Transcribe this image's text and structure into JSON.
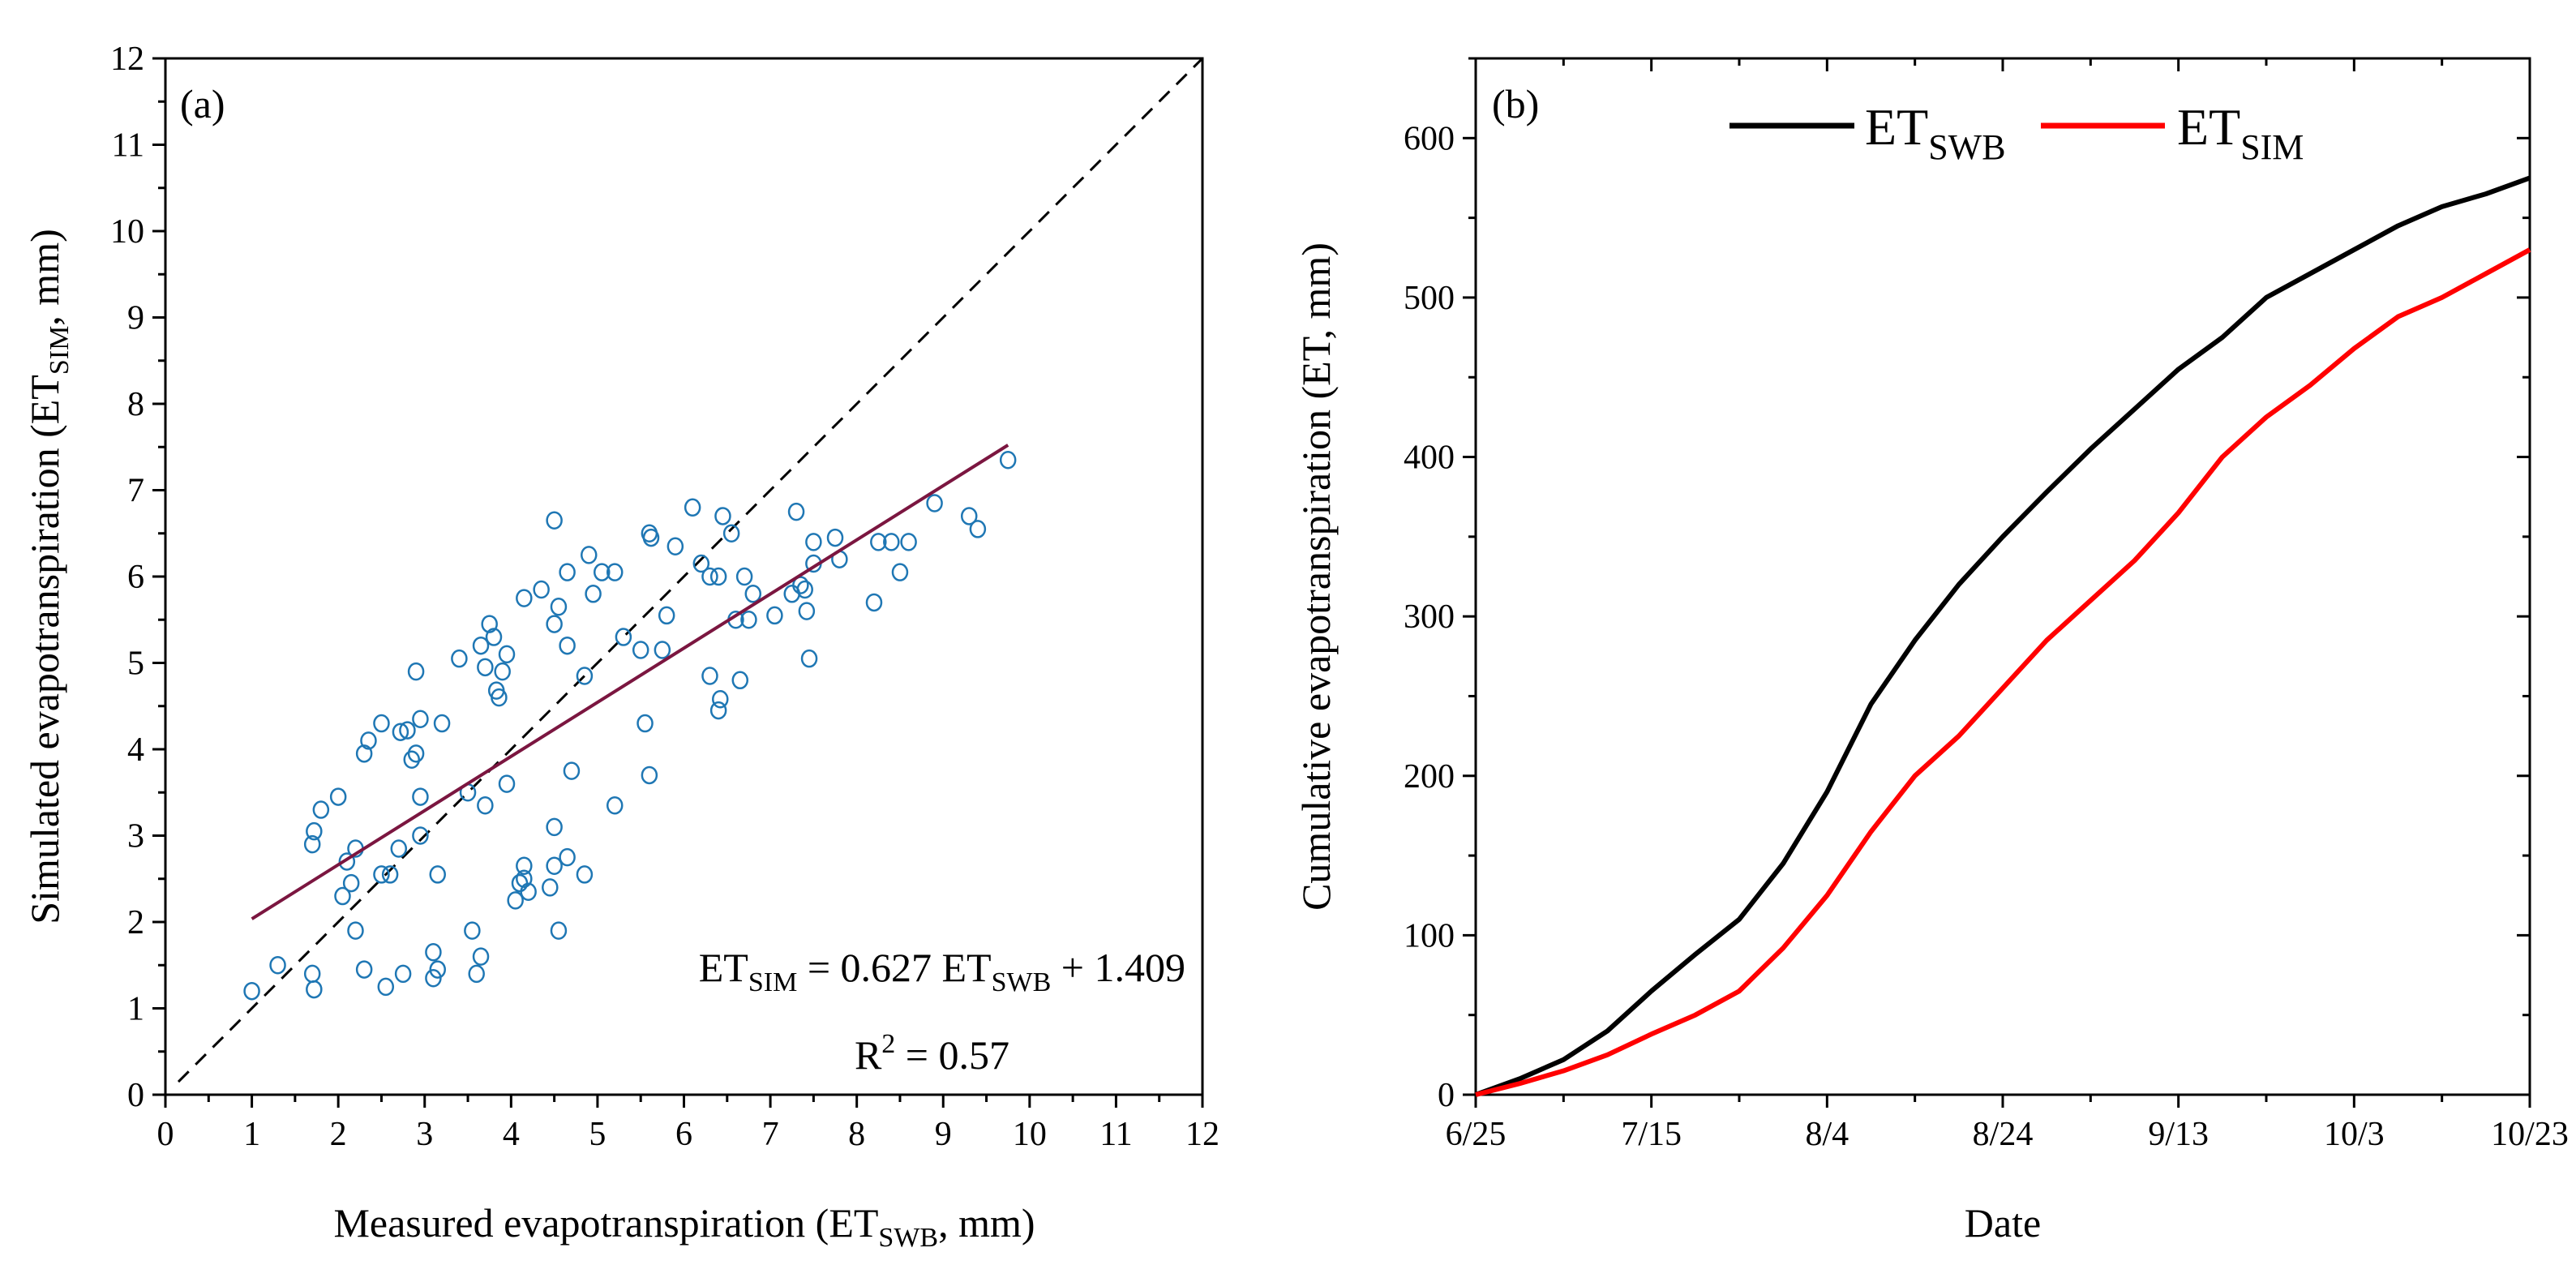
{
  "chart_data": [
    {
      "type": "scatter",
      "panel_label": "(a)",
      "xlabel": {
        "main": "Measured evapotranspiration (ET",
        "sub": "SWB",
        "tail": ", mm)"
      },
      "ylabel": {
        "main": "Simulated evapotranspiration (ET",
        "sub": "SIM",
        "tail": ", mm)"
      },
      "xlim": [
        0,
        12
      ],
      "ylim": [
        0,
        12
      ],
      "xticks": [
        "0",
        "1",
        "2",
        "3",
        "4",
        "5",
        "6",
        "7",
        "8",
        "9",
        "10",
        "11",
        "12"
      ],
      "yticks": [
        "0",
        "1",
        "2",
        "3",
        "4",
        "5",
        "6",
        "7",
        "8",
        "9",
        "10",
        "11",
        "12"
      ],
      "marker_color": "#1f77b4",
      "regression": {
        "slope": 0.627,
        "intercept": 1.409,
        "x_range": [
          1.0,
          9.75
        ],
        "color": "#7b1640"
      },
      "one_to_one_line": {
        "x_range": [
          0.15,
          12
        ],
        "style": "dashed"
      },
      "equation": {
        "lhs": "ET",
        "lhs_sub": "SIM",
        "mid": " = 0.627 ET",
        "mid_sub": "SWB",
        "rhs": " + 1.409"
      },
      "r2": {
        "pre": "R",
        "sup": "2",
        "post": " = 0.57"
      },
      "points": [
        [
          1.0,
          1.2
        ],
        [
          1.3,
          1.5
        ],
        [
          1.7,
          1.4
        ],
        [
          1.72,
          1.22
        ],
        [
          1.7,
          2.9
        ],
        [
          1.72,
          3.05
        ],
        [
          1.8,
          3.3
        ],
        [
          2.0,
          3.45
        ],
        [
          2.05,
          2.3
        ],
        [
          2.1,
          2.7
        ],
        [
          2.2,
          2.85
        ],
        [
          2.15,
          2.45
        ],
        [
          2.2,
          1.9
        ],
        [
          2.3,
          3.95
        ],
        [
          2.35,
          4.1
        ],
        [
          2.5,
          4.3
        ],
        [
          2.3,
          1.45
        ],
        [
          2.5,
          2.55
        ],
        [
          2.55,
          1.25
        ],
        [
          2.6,
          2.55
        ],
        [
          2.7,
          2.85
        ],
        [
          2.72,
          4.2
        ],
        [
          2.75,
          1.4
        ],
        [
          2.8,
          4.22
        ],
        [
          2.85,
          3.88
        ],
        [
          2.9,
          3.95
        ],
        [
          2.9,
          4.9
        ],
        [
          2.95,
          4.35
        ],
        [
          2.95,
          3.45
        ],
        [
          2.95,
          3.0
        ],
        [
          3.1,
          1.65
        ],
        [
          3.1,
          1.35
        ],
        [
          3.15,
          1.45
        ],
        [
          3.15,
          2.55
        ],
        [
          3.2,
          4.3
        ],
        [
          3.4,
          5.05
        ],
        [
          3.5,
          3.5
        ],
        [
          3.55,
          1.9
        ],
        [
          3.6,
          1.4
        ],
        [
          3.65,
          1.6
        ],
        [
          3.65,
          5.2
        ],
        [
          3.7,
          3.35
        ],
        [
          3.7,
          4.95
        ],
        [
          3.75,
          5.45
        ],
        [
          3.8,
          5.3
        ],
        [
          3.83,
          4.68
        ],
        [
          3.86,
          4.6
        ],
        [
          3.9,
          4.9
        ],
        [
          3.95,
          5.1
        ],
        [
          3.95,
          3.6
        ],
        [
          4.05,
          2.25
        ],
        [
          4.1,
          2.45
        ],
        [
          4.15,
          2.65
        ],
        [
          4.15,
          2.5
        ],
        [
          4.2,
          2.35
        ],
        [
          4.15,
          5.75
        ],
        [
          4.35,
          5.85
        ],
        [
          4.45,
          2.4
        ],
        [
          4.5,
          2.65
        ],
        [
          4.5,
          3.1
        ],
        [
          4.5,
          6.65
        ],
        [
          4.5,
          5.45
        ],
        [
          4.55,
          5.65
        ],
        [
          4.55,
          1.9
        ],
        [
          4.65,
          2.75
        ],
        [
          4.65,
          6.05
        ],
        [
          4.65,
          5.2
        ],
        [
          4.7,
          3.75
        ],
        [
          4.85,
          2.55
        ],
        [
          4.85,
          4.85
        ],
        [
          4.9,
          6.25
        ],
        [
          4.95,
          5.8
        ],
        [
          5.05,
          6.05
        ],
        [
          5.2,
          6.05
        ],
        [
          5.2,
          3.35
        ],
        [
          5.3,
          5.3
        ],
        [
          5.5,
          5.15
        ],
        [
          5.55,
          4.3
        ],
        [
          5.6,
          6.5
        ],
        [
          5.62,
          6.45
        ],
        [
          5.6,
          3.7
        ],
        [
          5.75,
          5.15
        ],
        [
          5.8,
          5.55
        ],
        [
          5.9,
          6.35
        ],
        [
          6.1,
          6.8
        ],
        [
          6.2,
          6.15
        ],
        [
          6.3,
          4.85
        ],
        [
          6.3,
          6.0
        ],
        [
          6.4,
          6.0
        ],
        [
          6.42,
          4.58
        ],
        [
          6.4,
          4.45
        ],
        [
          6.45,
          6.7
        ],
        [
          6.55,
          6.5
        ],
        [
          6.6,
          5.5
        ],
        [
          6.65,
          4.8
        ],
        [
          6.7,
          6.0
        ],
        [
          6.75,
          5.5
        ],
        [
          6.8,
          5.8
        ],
        [
          7.05,
          5.55
        ],
        [
          7.25,
          5.8
        ],
        [
          7.3,
          6.75
        ],
        [
          7.35,
          5.9
        ],
        [
          7.4,
          5.85
        ],
        [
          7.42,
          5.6
        ],
        [
          7.45,
          5.05
        ],
        [
          7.5,
          6.4
        ],
        [
          7.5,
          6.15
        ],
        [
          7.75,
          6.45
        ],
        [
          7.8,
          6.2
        ],
        [
          8.2,
          5.7
        ],
        [
          8.25,
          6.4
        ],
        [
          8.4,
          6.4
        ],
        [
          8.5,
          6.05
        ],
        [
          8.6,
          6.4
        ],
        [
          8.9,
          6.85
        ],
        [
          9.3,
          6.7
        ],
        [
          9.4,
          6.55
        ],
        [
          9.75,
          7.35
        ]
      ]
    },
    {
      "type": "line",
      "panel_label": "(b)",
      "xlabel": "Date",
      "ylabel": "Cumulative evapotranspiration (ET, mm)",
      "x_unit": "days since 6/25",
      "xlim": [
        0,
        120
      ],
      "ylim": [
        0,
        650
      ],
      "xticks": [
        {
          "day": 0,
          "label": "6/25"
        },
        {
          "day": 20,
          "label": "7/15"
        },
        {
          "day": 40,
          "label": "8/4"
        },
        {
          "day": 60,
          "label": "8/24"
        },
        {
          "day": 80,
          "label": "9/13"
        },
        {
          "day": 100,
          "label": "10/3"
        },
        {
          "day": 120,
          "label": "10/23"
        }
      ],
      "yticks": [
        "0",
        "100",
        "200",
        "300",
        "400",
        "500",
        "600"
      ],
      "legend_position": "top-center",
      "x": [
        0,
        5,
        10,
        15,
        20,
        25,
        30,
        35,
        40,
        45,
        50,
        55,
        60,
        65,
        70,
        75,
        80,
        85,
        90,
        95,
        100,
        105,
        110,
        115,
        120
      ],
      "series": [
        {
          "name": "ET",
          "name_sub": "SWB",
          "color": "#000000",
          "values": [
            0,
            10,
            22,
            40,
            65,
            88,
            110,
            145,
            190,
            245,
            285,
            320,
            350,
            378,
            405,
            430,
            455,
            475,
            500,
            515,
            530,
            545,
            557,
            565,
            575
          ]
        },
        {
          "name": "ET",
          "name_sub": "SIM",
          "color": "#ff0000",
          "values": [
            0,
            7,
            15,
            25,
            38,
            50,
            65,
            92,
            125,
            165,
            200,
            225,
            255,
            285,
            310,
            335,
            365,
            400,
            425,
            445,
            468,
            488,
            500,
            515,
            530
          ]
        }
      ]
    }
  ]
}
